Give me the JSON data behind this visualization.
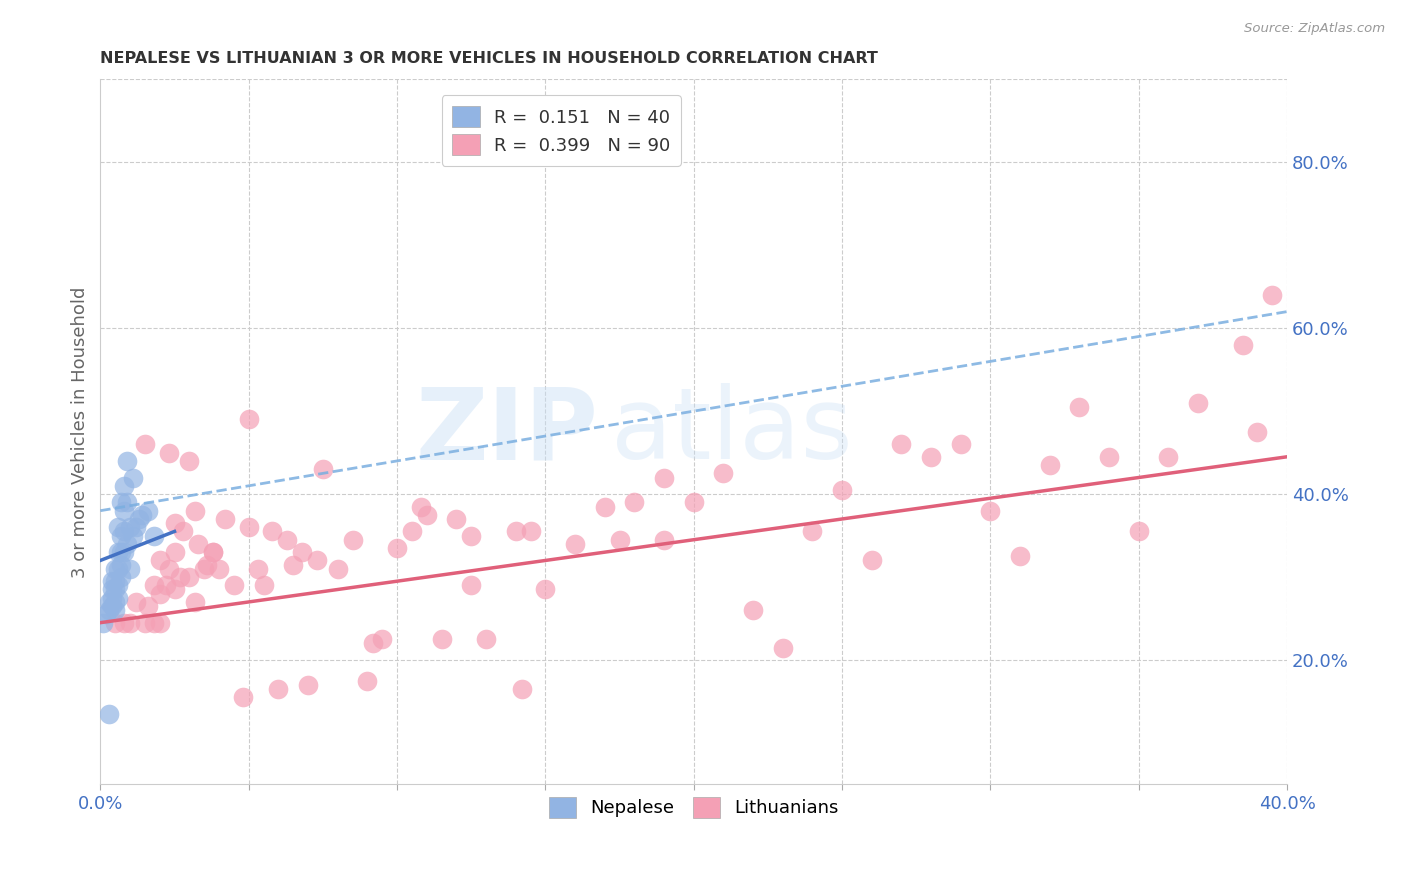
{
  "title": "NEPALESE VS LITHUANIAN 3 OR MORE VEHICLES IN HOUSEHOLD CORRELATION CHART",
  "source": "Source: ZipAtlas.com",
  "ylabel": "3 or more Vehicles in Household",
  "watermark_zip": "ZIP",
  "watermark_atlas": "atlas",
  "xlim": [
    0.0,
    0.4
  ],
  "ylim": [
    0.05,
    0.9
  ],
  "xtick_positions": [
    0.0,
    0.05,
    0.1,
    0.15,
    0.2,
    0.25,
    0.3,
    0.35,
    0.4
  ],
  "xticklabels": [
    "0.0%",
    "",
    "",
    "",
    "",
    "",
    "",
    "",
    "40.0%"
  ],
  "yticks_right": [
    0.2,
    0.4,
    0.6,
    0.8
  ],
  "ytick_right_labels": [
    "20.0%",
    "40.0%",
    "60.0%",
    "80.0%"
  ],
  "nepalese_color": "#92B4E3",
  "lithuanians_color": "#F4A0B5",
  "nepalese_line_color": "#4472C4",
  "lithuanians_line_color": "#E0607A",
  "dashed_line_color": "#7AAEE0",
  "background_color": "#FFFFFF",
  "grid_color": "#CCCCCC",
  "nepalese_R": 0.151,
  "nepalese_N": 40,
  "lithuanians_R": 0.399,
  "lithuanians_N": 90,
  "nepalese_line_x0": 0.0,
  "nepalese_line_y0": 0.32,
  "nepalese_line_x1": 0.025,
  "nepalese_line_y1": 0.355,
  "dashed_line_x0": 0.0,
  "dashed_line_y0": 0.38,
  "dashed_line_x1": 0.4,
  "dashed_line_y1": 0.62,
  "lithuanians_line_x0": 0.0,
  "lithuanians_line_y0": 0.245,
  "lithuanians_line_x1": 0.4,
  "lithuanians_line_y1": 0.445,
  "nepalese_points_x": [
    0.001,
    0.002,
    0.003,
    0.003,
    0.004,
    0.004,
    0.004,
    0.004,
    0.005,
    0.005,
    0.005,
    0.005,
    0.005,
    0.006,
    0.006,
    0.006,
    0.006,
    0.006,
    0.007,
    0.007,
    0.007,
    0.007,
    0.007,
    0.008,
    0.008,
    0.008,
    0.008,
    0.009,
    0.009,
    0.009,
    0.01,
    0.01,
    0.011,
    0.011,
    0.012,
    0.013,
    0.014,
    0.016,
    0.018,
    0.003
  ],
  "nepalese_points_y": [
    0.245,
    0.255,
    0.26,
    0.27,
    0.265,
    0.275,
    0.285,
    0.295,
    0.26,
    0.27,
    0.285,
    0.295,
    0.31,
    0.275,
    0.29,
    0.31,
    0.33,
    0.36,
    0.3,
    0.315,
    0.33,
    0.35,
    0.39,
    0.33,
    0.355,
    0.38,
    0.41,
    0.34,
    0.39,
    0.44,
    0.31,
    0.36,
    0.35,
    0.42,
    0.36,
    0.37,
    0.375,
    0.38,
    0.35,
    0.135
  ],
  "lithuanians_points_x": [
    0.005,
    0.008,
    0.01,
    0.012,
    0.015,
    0.016,
    0.018,
    0.018,
    0.02,
    0.02,
    0.022,
    0.023,
    0.025,
    0.025,
    0.027,
    0.028,
    0.03,
    0.032,
    0.033,
    0.035,
    0.036,
    0.038,
    0.04,
    0.042,
    0.045,
    0.048,
    0.05,
    0.053,
    0.055,
    0.058,
    0.06,
    0.063,
    0.065,
    0.068,
    0.07,
    0.073,
    0.075,
    0.08,
    0.085,
    0.09,
    0.095,
    0.1,
    0.105,
    0.11,
    0.115,
    0.12,
    0.125,
    0.13,
    0.14,
    0.145,
    0.15,
    0.16,
    0.17,
    0.175,
    0.18,
    0.19,
    0.2,
    0.21,
    0.22,
    0.23,
    0.24,
    0.25,
    0.26,
    0.27,
    0.28,
    0.29,
    0.3,
    0.31,
    0.32,
    0.33,
    0.34,
    0.35,
    0.36,
    0.37,
    0.385,
    0.395,
    0.05,
    0.092,
    0.19,
    0.39,
    0.108,
    0.125,
    0.142,
    0.023,
    0.03,
    0.038,
    0.015,
    0.02,
    0.025,
    0.032
  ],
  "lithuanians_points_y": [
    0.245,
    0.245,
    0.245,
    0.27,
    0.245,
    0.265,
    0.245,
    0.29,
    0.28,
    0.245,
    0.29,
    0.31,
    0.285,
    0.33,
    0.3,
    0.355,
    0.3,
    0.27,
    0.34,
    0.31,
    0.315,
    0.33,
    0.31,
    0.37,
    0.29,
    0.155,
    0.36,
    0.31,
    0.29,
    0.355,
    0.165,
    0.345,
    0.315,
    0.33,
    0.17,
    0.32,
    0.43,
    0.31,
    0.345,
    0.175,
    0.225,
    0.335,
    0.355,
    0.375,
    0.225,
    0.37,
    0.35,
    0.225,
    0.355,
    0.355,
    0.285,
    0.34,
    0.385,
    0.345,
    0.39,
    0.345,
    0.39,
    0.425,
    0.26,
    0.215,
    0.355,
    0.405,
    0.32,
    0.46,
    0.445,
    0.46,
    0.38,
    0.325,
    0.435,
    0.505,
    0.445,
    0.355,
    0.445,
    0.51,
    0.58,
    0.64,
    0.49,
    0.22,
    0.42,
    0.475,
    0.385,
    0.29,
    0.165,
    0.45,
    0.44,
    0.33,
    0.46,
    0.32,
    0.365,
    0.38
  ],
  "title_color": "#333333",
  "axis_label_color": "#666666",
  "tick_color": "#4472C4",
  "title_fontsize": 11.5,
  "axis_fontsize": 13,
  "legend_fontsize": 13
}
